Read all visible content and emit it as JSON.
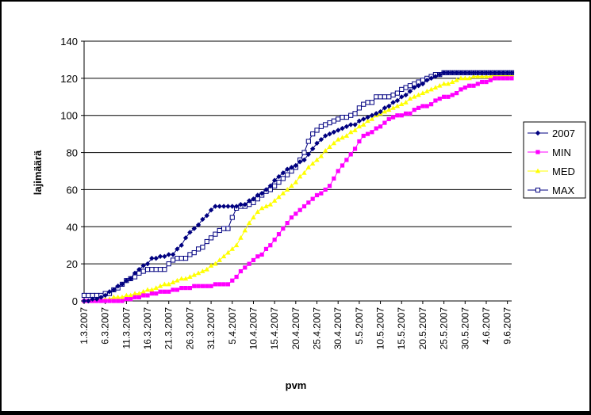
{
  "chart_data": {
    "type": "line",
    "title": "",
    "xlabel": "pvm",
    "ylabel": "lajimäärä",
    "ylim": [
      0,
      140
    ],
    "yticks": [
      "0",
      "20",
      "40",
      "60",
      "80",
      "100",
      "120",
      "140"
    ],
    "xticks": [
      "1.3.2007",
      "6.3.2007",
      "11.3.2007",
      "16.3.2007",
      "21.3.2007",
      "26.3.2007",
      "31.3.2007",
      "5.4.2007",
      "10.4.2007",
      "15.4.2007",
      "20.4.2007",
      "25.4.2007",
      "30.4.2007",
      "5.5.2007",
      "10.5.2007",
      "15.5.2007",
      "20.5.2007",
      "25.5.2007",
      "30.5.2007",
      "4.6.2007",
      "9.6.2007"
    ],
    "xrange": [
      "1.3.2007",
      "10.6.2007"
    ],
    "grid": "horizontal",
    "legend_position": "right",
    "series": [
      {
        "name": "2007",
        "color": "#000080",
        "marker": "diamond",
        "points": [
          [
            "1.3.2007",
            0
          ],
          [
            "4.3.2007",
            1
          ],
          [
            "6.3.2007",
            3
          ],
          [
            "8.3.2007",
            6
          ],
          [
            "10.3.2007",
            9
          ],
          [
            "12.3.2007",
            12
          ],
          [
            "14.3.2007",
            17
          ],
          [
            "16.3.2007",
            20
          ],
          [
            "17.3.2007",
            23
          ],
          [
            "22.3.2007",
            25
          ],
          [
            "24.3.2007",
            30
          ],
          [
            "26.3.2007",
            37
          ],
          [
            "28.3.2007",
            41
          ],
          [
            "30.3.2007",
            46
          ],
          [
            "1.4.2007",
            51
          ],
          [
            "6.4.2007",
            51
          ],
          [
            "8.4.2007",
            52
          ],
          [
            "10.4.2007",
            55
          ],
          [
            "12.4.2007",
            58
          ],
          [
            "14.4.2007",
            62
          ],
          [
            "16.4.2007",
            67
          ],
          [
            "18.4.2007",
            71
          ],
          [
            "20.4.2007",
            73
          ],
          [
            "22.4.2007",
            76
          ],
          [
            "24.4.2007",
            82
          ],
          [
            "26.4.2007",
            87
          ],
          [
            "28.4.2007",
            90
          ],
          [
            "30.4.2007",
            92
          ],
          [
            "2.5.2007",
            94
          ],
          [
            "4.5.2007",
            95
          ],
          [
            "6.5.2007",
            98
          ],
          [
            "8.5.2007",
            100
          ],
          [
            "10.5.2007",
            102
          ],
          [
            "12.5.2007",
            105
          ],
          [
            "14.5.2007",
            108
          ],
          [
            "16.5.2007",
            111
          ],
          [
            "18.5.2007",
            115
          ],
          [
            "20.5.2007",
            117
          ],
          [
            "22.5.2007",
            120
          ],
          [
            "24.5.2007",
            122
          ],
          [
            "26.5.2007",
            123
          ],
          [
            "10.6.2007",
            123
          ]
        ]
      },
      {
        "name": "MIN",
        "color": "#FF00FF",
        "marker": "square",
        "points": [
          [
            "1.3.2007",
            0
          ],
          [
            "10.3.2007",
            0
          ],
          [
            "12.3.2007",
            1
          ],
          [
            "14.3.2007",
            2
          ],
          [
            "16.3.2007",
            3
          ],
          [
            "18.3.2007",
            4
          ],
          [
            "20.3.2007",
            5
          ],
          [
            "23.3.2007",
            6
          ],
          [
            "25.3.2007",
            7
          ],
          [
            "28.3.2007",
            8
          ],
          [
            "4.4.2007",
            9
          ],
          [
            "6.4.2007",
            13
          ],
          [
            "8.4.2007",
            18
          ],
          [
            "10.4.2007",
            22
          ],
          [
            "12.4.2007",
            25
          ],
          [
            "14.4.2007",
            30
          ],
          [
            "16.4.2007",
            36
          ],
          [
            "18.4.2007",
            42
          ],
          [
            "20.4.2007",
            47
          ],
          [
            "22.4.2007",
            51
          ],
          [
            "24.4.2007",
            55
          ],
          [
            "26.4.2007",
            58
          ],
          [
            "28.4.2007",
            62
          ],
          [
            "30.4.2007",
            70
          ],
          [
            "2.5.2007",
            76
          ],
          [
            "4.5.2007",
            82
          ],
          [
            "6.5.2007",
            89
          ],
          [
            "8.5.2007",
            91
          ],
          [
            "10.5.2007",
            94
          ],
          [
            "12.5.2007",
            98
          ],
          [
            "14.5.2007",
            100
          ],
          [
            "17.5.2007",
            101
          ],
          [
            "19.5.2007",
            104
          ],
          [
            "22.5.2007",
            106
          ],
          [
            "24.5.2007",
            109
          ],
          [
            "26.5.2007",
            110
          ],
          [
            "28.5.2007",
            112
          ],
          [
            "30.5.2007",
            115
          ],
          [
            "2.6.2007",
            117
          ],
          [
            "5.6.2007",
            119
          ],
          [
            "7.6.2007",
            120
          ],
          [
            "10.6.2007",
            120
          ]
        ]
      },
      {
        "name": "MED",
        "color": "#FFFF00",
        "marker": "triangle",
        "points": [
          [
            "1.3.2007",
            0
          ],
          [
            "6.3.2007",
            1
          ],
          [
            "10.3.2007",
            2
          ],
          [
            "14.3.2007",
            4
          ],
          [
            "18.3.2007",
            7
          ],
          [
            "22.3.2007",
            10
          ],
          [
            "26.3.2007",
            13
          ],
          [
            "30.3.2007",
            17
          ],
          [
            "2.4.2007",
            22
          ],
          [
            "4.4.2007",
            26
          ],
          [
            "6.4.2007",
            30
          ],
          [
            "8.4.2007",
            38
          ],
          [
            "10.4.2007",
            45
          ],
          [
            "12.4.2007",
            50
          ],
          [
            "14.4.2007",
            52
          ],
          [
            "16.4.2007",
            56
          ],
          [
            "18.4.2007",
            60
          ],
          [
            "20.4.2007",
            64
          ],
          [
            "22.4.2007",
            69
          ],
          [
            "24.4.2007",
            74
          ],
          [
            "26.4.2007",
            78
          ],
          [
            "28.4.2007",
            83
          ],
          [
            "30.4.2007",
            87
          ],
          [
            "2.5.2007",
            89
          ],
          [
            "4.5.2007",
            92
          ],
          [
            "6.5.2007",
            95
          ],
          [
            "8.5.2007",
            98
          ],
          [
            "10.5.2007",
            101
          ],
          [
            "12.5.2007",
            103
          ],
          [
            "14.5.2007",
            105
          ],
          [
            "16.5.2007",
            107
          ],
          [
            "18.5.2007",
            110
          ],
          [
            "20.5.2007",
            112
          ],
          [
            "22.5.2007",
            114
          ],
          [
            "24.5.2007",
            116
          ],
          [
            "26.5.2007",
            117
          ],
          [
            "28.5.2007",
            119
          ],
          [
            "30.5.2007",
            120
          ],
          [
            "2.6.2007",
            121
          ],
          [
            "10.6.2007",
            122
          ]
        ]
      },
      {
        "name": "MAX",
        "color": "#000080",
        "marker": "square-open",
        "points": [
          [
            "1.3.2007",
            3
          ],
          [
            "5.3.2007",
            3
          ],
          [
            "7.3.2007",
            4
          ],
          [
            "9.3.2007",
            7
          ],
          [
            "11.3.2007",
            11
          ],
          [
            "13.3.2007",
            13
          ],
          [
            "15.3.2007",
            16
          ],
          [
            "16.3.2007",
            17
          ],
          [
            "20.3.2007",
            17
          ],
          [
            "21.3.2007",
            20
          ],
          [
            "22.3.2007",
            22
          ],
          [
            "23.3.2007",
            23
          ],
          [
            "25.3.2007",
            23
          ],
          [
            "27.3.2007",
            26
          ],
          [
            "29.3.2007",
            29
          ],
          [
            "31.3.2007",
            34
          ],
          [
            "2.4.2007",
            38
          ],
          [
            "4.4.2007",
            39
          ],
          [
            "5.4.2007",
            45
          ],
          [
            "6.4.2007",
            50
          ],
          [
            "8.4.2007",
            51
          ],
          [
            "10.4.2007",
            53
          ],
          [
            "12.4.2007",
            57
          ],
          [
            "14.4.2007",
            60
          ],
          [
            "16.4.2007",
            64
          ],
          [
            "18.4.2007",
            68
          ],
          [
            "20.4.2007",
            72
          ],
          [
            "22.4.2007",
            80
          ],
          [
            "23.4.2007",
            86
          ],
          [
            "24.4.2007",
            90
          ],
          [
            "26.4.2007",
            94
          ],
          [
            "28.4.2007",
            96
          ],
          [
            "30.4.2007",
            98
          ],
          [
            "2.5.2007",
            99
          ],
          [
            "4.5.2007",
            101
          ],
          [
            "6.5.2007",
            106
          ],
          [
            "8.5.2007",
            107
          ],
          [
            "9.5.2007",
            110
          ],
          [
            "12.5.2007",
            110
          ],
          [
            "14.5.2007",
            112
          ],
          [
            "16.5.2007",
            115
          ],
          [
            "18.5.2007",
            117
          ],
          [
            "20.5.2007",
            119
          ],
          [
            "22.5.2007",
            121
          ],
          [
            "24.5.2007",
            122
          ],
          [
            "26.5.2007",
            123
          ],
          [
            "10.6.2007",
            123
          ]
        ]
      }
    ]
  }
}
